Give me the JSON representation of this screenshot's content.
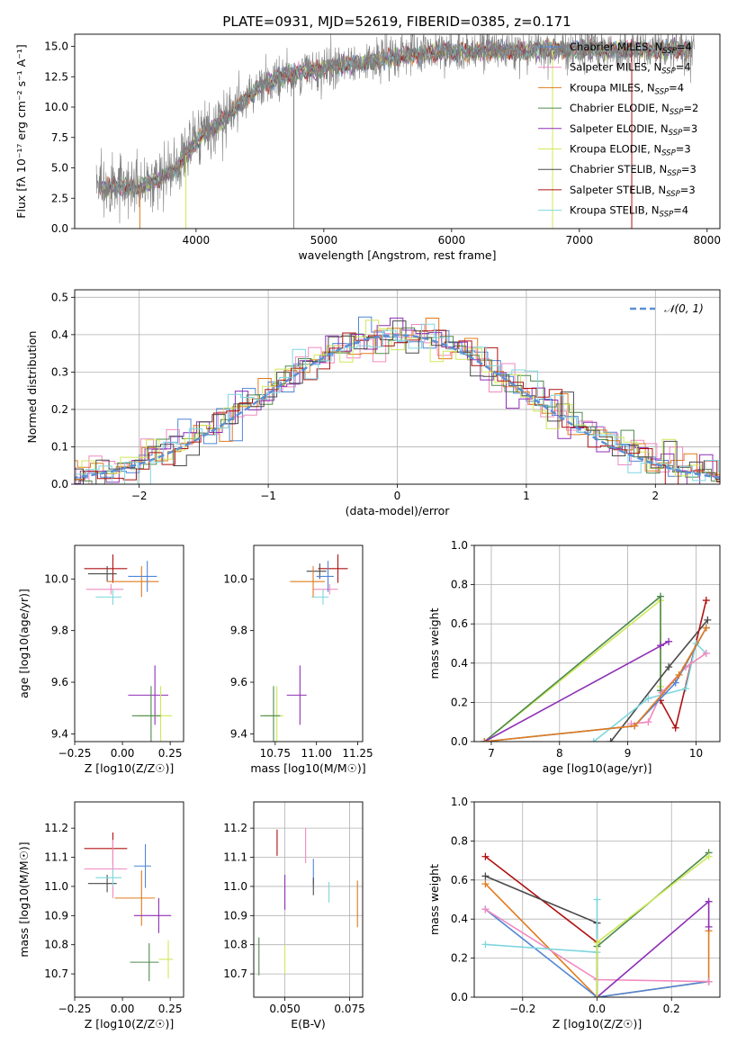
{
  "figure_title": "PLATE=0931, MJD=52619, FIBERID=0385, z=0.171",
  "colors": {
    "Chabrier MILES": "#4f86d6",
    "Salpeter MILES": "#f08ac0",
    "Kroupa MILES": "#e07b1e",
    "Chabrier ELODIE": "#4e8a4e",
    "Salpeter ELODIE": "#8e2fb5",
    "Kroupa ELODIE": "#cfe85a",
    "Chabrier STELIB": "#4a4a4a",
    "Salpeter STELIB": "#b01010",
    "Kroupa STELIB": "#7fd6de",
    "data": "#808080",
    "normal": "#5b8fd4"
  },
  "chart_data": [
    {
      "id": "spectrum",
      "type": "line",
      "title": "PLATE=0931, MJD=52619, FIBERID=0385, z=0.171",
      "xlabel": "wavelength [Angstrom, rest frame]",
      "ylabel": "Flux [fλ 10⁻¹⁷ erg cm⁻² s⁻¹ A⁻¹]",
      "xlim": [
        3050,
        8100
      ],
      "ylim": [
        0,
        16
      ],
      "xticks": [
        4000,
        5000,
        6000,
        7000,
        8000
      ],
      "yticks": [
        0.0,
        2.5,
        5.0,
        7.5,
        10.0,
        12.5,
        15.0
      ],
      "legend_position": "right",
      "grid": false,
      "series": [
        {
          "name": "Chabrier MILES, N_SSP=4"
        },
        {
          "name": "Salpeter MILES, N_SSP=4"
        },
        {
          "name": "Kroupa MILES, N_SSP=4"
        },
        {
          "name": "Chabrier ELODIE, N_SSP=2"
        },
        {
          "name": "Salpeter ELODIE, N_SSP=3"
        },
        {
          "name": "Kroupa ELODIE, N_SSP=3"
        },
        {
          "name": "Chabrier STELIB, N_SSP=3"
        },
        {
          "name": "Salpeter STELIB, N_SSP=3"
        },
        {
          "name": "Kroupa STELIB, N_SSP=4"
        }
      ],
      "continuum": {
        "x": [
          3250,
          3400,
          3550,
          3700,
          3850,
          3950,
          4050,
          4200,
          4350,
          4500,
          4650,
          4800,
          5000,
          5200,
          5400,
          5600,
          5800,
          6000,
          6200,
          6400,
          6600,
          6800
        ],
        "y": [
          3.3,
          3.5,
          3.4,
          4.0,
          5.0,
          6.5,
          7.6,
          8.8,
          10.3,
          11.8,
          12.4,
          12.9,
          13.2,
          13.5,
          13.8,
          14.2,
          14.4,
          14.6,
          14.6,
          14.6,
          14.6,
          14.7
        ]
      },
      "data_extent": [
        3220,
        7900
      ]
    },
    {
      "id": "residuals",
      "type": "line",
      "xlabel": "(data-model)/error",
      "ylabel": "Normed distribution",
      "xlim": [
        -2.5,
        2.5
      ],
      "ylim": [
        0,
        0.52
      ],
      "xticks": [
        -2,
        -1,
        0,
        1,
        2
      ],
      "yticks": [
        0.0,
        0.1,
        0.2,
        0.3,
        0.4,
        0.5
      ],
      "grid": true,
      "legend_position": "top-right",
      "legend": "𝒩(0, 1)",
      "bin_width": 0.1
    },
    {
      "id": "age_vs_Z",
      "type": "scatter",
      "xlabel": "Z [log10(Z/Z☉)]",
      "ylabel": "age  [log10(age/yr)]",
      "xlim": [
        -0.25,
        0.32
      ],
      "ylim": [
        9.37,
        10.13
      ],
      "xticks": [
        -0.25,
        0.0,
        0.25
      ],
      "yticks": [
        9.4,
        9.6,
        9.8,
        10.0
      ],
      "grid": false,
      "points": [
        {
          "series": "Salpeter STELIB",
          "x": -0.05,
          "y": 10.04,
          "dx": 0.15,
          "dy": 0.11
        },
        {
          "series": "Chabrier STELIB",
          "x": -0.08,
          "y": 10.02,
          "dx": 0.1,
          "dy": 0.06
        },
        {
          "series": "Salpeter MILES",
          "x": -0.06,
          "y": 9.96,
          "dx": 0.13,
          "dy": 0.04
        },
        {
          "series": "Kroupa STELIB",
          "x": -0.05,
          "y": 9.93,
          "dx": 0.09,
          "dy": 0.06
        },
        {
          "series": "Kroupa MILES",
          "x": 0.1,
          "y": 9.99,
          "dx": 0.18,
          "dy": 0.12
        },
        {
          "series": "Chabrier MILES",
          "x": 0.13,
          "y": 10.01,
          "dx": 0.1,
          "dy": 0.12
        },
        {
          "series": "Salpeter ELODIE",
          "x": 0.17,
          "y": 9.55,
          "dx": 0.14,
          "dy": 0.23
        },
        {
          "series": "Kroupa ELODIE",
          "x": 0.2,
          "y": 9.47,
          "dx": 0.12,
          "dy": 0.23
        },
        {
          "series": "Chabrier ELODIE",
          "x": 0.15,
          "y": 9.47,
          "dx": 0.1,
          "dy": 0.23
        }
      ]
    },
    {
      "id": "age_vs_mass",
      "type": "scatter",
      "xlabel": "mass [log10(M/M☉)]",
      "xlim": [
        10.62,
        11.28
      ],
      "ylim": [
        9.37,
        10.13
      ],
      "xticks": [
        10.75,
        11.0,
        11.25
      ],
      "yticks": [
        9.4,
        9.6,
        9.8,
        10.0
      ],
      "grid": false,
      "points": [
        {
          "series": "Salpeter STELIB",
          "x": 11.13,
          "y": 10.04,
          "dx": 0.12,
          "dy": 0.11
        },
        {
          "series": "Chabrier STELIB",
          "x": 11.02,
          "y": 10.03,
          "dx": 0.08,
          "dy": 0.06
        },
        {
          "series": "Salpeter MILES",
          "x": 11.08,
          "y": 9.96,
          "dx": 0.1,
          "dy": 0.04
        },
        {
          "series": "Kroupa STELIB",
          "x": 11.04,
          "y": 9.93,
          "dx": 0.07,
          "dy": 0.06
        },
        {
          "series": "Kroupa MILES",
          "x": 10.98,
          "y": 9.99,
          "dx": 0.14,
          "dy": 0.12
        },
        {
          "series": "Chabrier MILES",
          "x": 11.07,
          "y": 10.01,
          "dx": 0.07,
          "dy": 0.12
        },
        {
          "series": "Salpeter ELODIE",
          "x": 10.9,
          "y": 9.55,
          "dx": 0.08,
          "dy": 0.23
        },
        {
          "series": "Kroupa ELODIE",
          "x": 10.76,
          "y": 9.47,
          "dx": 0.08,
          "dy": 0.23
        },
        {
          "series": "Chabrier ELODIE",
          "x": 10.74,
          "y": 9.47,
          "dx": 0.08,
          "dy": 0.23
        }
      ]
    },
    {
      "id": "weight_vs_age",
      "type": "line",
      "xlabel": "age  [log10(age/yr)]",
      "ylabel": "mass weight",
      "xlim": [
        6.75,
        10.35
      ],
      "ylim": [
        0,
        1
      ],
      "xticks": [
        7,
        8,
        9,
        10
      ],
      "yticks": [
        0.0,
        0.2,
        0.4,
        0.6,
        0.8,
        1.0
      ],
      "grid": true,
      "series": [
        {
          "series": "Kroupa ELODIE",
          "x": [
            6.9,
            9.48,
            9.48
          ],
          "y": [
            0.0,
            0.72,
            0.28
          ]
        },
        {
          "series": "Chabrier ELODIE",
          "x": [
            6.9,
            9.48,
            9.48
          ],
          "y": [
            0.0,
            0.74,
            0.26
          ]
        },
        {
          "series": "Salpeter ELODIE",
          "x": [
            6.9,
            9.6,
            9.48
          ],
          "y": [
            0.0,
            0.51,
            0.49
          ]
        },
        {
          "series": "Chabrier STELIB",
          "x": [
            8.75,
            9.6,
            10.17
          ],
          "y": [
            0.0,
            0.38,
            0.62
          ]
        },
        {
          "series": "Salpeter STELIB",
          "x": [
            9.48,
            9.7,
            10.15
          ],
          "y": [
            0.21,
            0.07,
            0.72
          ]
        },
        {
          "series": "Kroupa STELIB",
          "x": [
            8.5,
            9.3,
            9.85,
            10.0,
            10.15
          ],
          "y": [
            0.0,
            0.22,
            0.27,
            0.5,
            0.45
          ]
        },
        {
          "series": "Salpeter MILES",
          "x": [
            9.05,
            9.3,
            9.5,
            9.85,
            10.15
          ],
          "y": [
            0.09,
            0.1,
            0.25,
            0.38,
            0.45
          ]
        },
        {
          "series": "Chabrier MILES",
          "x": [
            6.9,
            9.1,
            9.7,
            10.15
          ],
          "y": [
            0.0,
            0.08,
            0.3,
            0.58
          ]
        },
        {
          "series": "Kroupa MILES",
          "x": [
            6.9,
            9.1,
            9.75,
            10.15
          ],
          "y": [
            0.0,
            0.08,
            0.34,
            0.58
          ]
        }
      ]
    },
    {
      "id": "mass_vs_Z",
      "type": "scatter",
      "xlabel": "Z [log10(Z/Z☉)]",
      "ylabel": "mass [log10(M/M☉)]",
      "xlim": [
        -0.25,
        0.32
      ],
      "ylim": [
        10.62,
        11.29
      ],
      "xticks": [
        -0.25,
        0.0,
        0.25
      ],
      "yticks": [
        10.7,
        10.8,
        10.9,
        11.0,
        11.1,
        11.2
      ],
      "grid": false,
      "points": [
        {
          "series": "Salpeter STELIB",
          "x": -0.05,
          "y": 11.13,
          "dx": 0.15,
          "dy": 0.11
        },
        {
          "series": "Chabrier STELIB",
          "x": -0.08,
          "y": 11.01,
          "dx": 0.1,
          "dy": 0.06
        },
        {
          "series": "Salpeter MILES",
          "x": -0.05,
          "y": 11.06,
          "dx": 0.15,
          "dy": 0.2
        },
        {
          "series": "Kroupa STELIB",
          "x": -0.05,
          "y": 11.03,
          "dx": 0.09,
          "dy": 0.06
        },
        {
          "series": "Kroupa MILES",
          "x": 0.1,
          "y": 10.96,
          "dx": 0.14,
          "dy": 0.19
        },
        {
          "series": "Chabrier MILES",
          "x": 0.12,
          "y": 11.07,
          "dx": 0.06,
          "dy": 0.15
        },
        {
          "series": "Salpeter ELODIE",
          "x": 0.19,
          "y": 10.9,
          "dx": 0.13,
          "dy": 0.12
        },
        {
          "series": "Kroupa ELODIE",
          "x": 0.24,
          "y": 10.75,
          "dx": 0.05,
          "dy": 0.13
        },
        {
          "series": "Chabrier ELODIE",
          "x": 0.14,
          "y": 10.74,
          "dx": 0.1,
          "dy": 0.13
        }
      ]
    },
    {
      "id": "mass_vs_ebv",
      "type": "scatter",
      "xlabel": "E(B-V)",
      "xlim": [
        0.038,
        0.08
      ],
      "ylim": [
        10.62,
        11.29
      ],
      "xticks": [
        0.05,
        0.075
      ],
      "yticks": [
        10.7,
        10.8,
        10.9,
        11.0,
        11.1,
        11.2
      ],
      "grid": true,
      "points": [
        {
          "series": "Salpeter STELIB",
          "x": 0.047,
          "y": 11.15,
          "dy": 0.09
        },
        {
          "series": "Salpeter MILES",
          "x": 0.058,
          "y": 11.14,
          "dy": 0.12
        },
        {
          "series": "Chabrier MILES",
          "x": 0.061,
          "y": 11.05,
          "dy": 0.09
        },
        {
          "series": "Chabrier STELIB",
          "x": 0.061,
          "y": 11.0,
          "dy": 0.06
        },
        {
          "series": "Kroupa STELIB",
          "x": 0.067,
          "y": 10.98,
          "dy": 0.07
        },
        {
          "series": "Salpeter ELODIE",
          "x": 0.05,
          "y": 10.98,
          "dy": 0.12
        },
        {
          "series": "Kroupa MILES",
          "x": 0.078,
          "y": 10.94,
          "dy": 0.16
        },
        {
          "series": "Kroupa ELODIE",
          "x": 0.05,
          "y": 10.75,
          "dy": 0.1
        },
        {
          "series": "Chabrier ELODIE",
          "x": 0.04,
          "y": 10.76,
          "dy": 0.13
        }
      ]
    },
    {
      "id": "weight_vs_Z",
      "type": "line",
      "xlabel": "Z [log10(Z/Z☉)]",
      "ylabel": "mass weight",
      "xlim": [
        -0.33,
        0.33
      ],
      "ylim": [
        0,
        1
      ],
      "xticks": [
        -0.2,
        0.0,
        0.2
      ],
      "yticks": [
        0.0,
        0.2,
        0.4,
        0.6,
        0.8,
        1.0
      ],
      "grid": true,
      "series": [
        {
          "series": "Salpeter STELIB",
          "x": [
            -0.3,
            0.0
          ],
          "y": [
            0.72,
            0.28
          ]
        },
        {
          "series": "Chabrier STELIB",
          "x": [
            -0.3,
            0.0,
            0.0
          ],
          "y": [
            0.62,
            0.38,
            0.0
          ]
        },
        {
          "series": "Kroupa MILES",
          "x": [
            -0.3,
            0.0,
            0.3,
            0.3
          ],
          "y": [
            0.58,
            0.0,
            0.08,
            0.34
          ]
        },
        {
          "series": "Chabrier MILES",
          "x": [
            -0.3,
            0.0,
            0.3
          ],
          "y": [
            0.45,
            0.0,
            0.08
          ]
        },
        {
          "series": "Salpeter MILES",
          "x": [
            -0.3,
            0.0,
            0.3
          ],
          "y": [
            0.45,
            0.09,
            0.08
          ]
        },
        {
          "series": "Kroupa STELIB",
          "x": [
            -0.3,
            0.0,
            0.0
          ],
          "y": [
            0.27,
            0.23,
            0.5
          ]
        },
        {
          "series": "Salpeter ELODIE",
          "x": [
            0.0,
            0.3,
            0.3
          ],
          "y": [
            0.0,
            0.49,
            0.36
          ]
        },
        {
          "series": "Chabrier ELODIE",
          "x": [
            0.0,
            0.0,
            0.3
          ],
          "y": [
            0.0,
            0.26,
            0.74
          ]
        },
        {
          "series": "Kroupa ELODIE",
          "x": [
            0.0,
            0.0,
            0.3
          ],
          "y": [
            0.0,
            0.28,
            0.72
          ]
        }
      ]
    }
  ]
}
